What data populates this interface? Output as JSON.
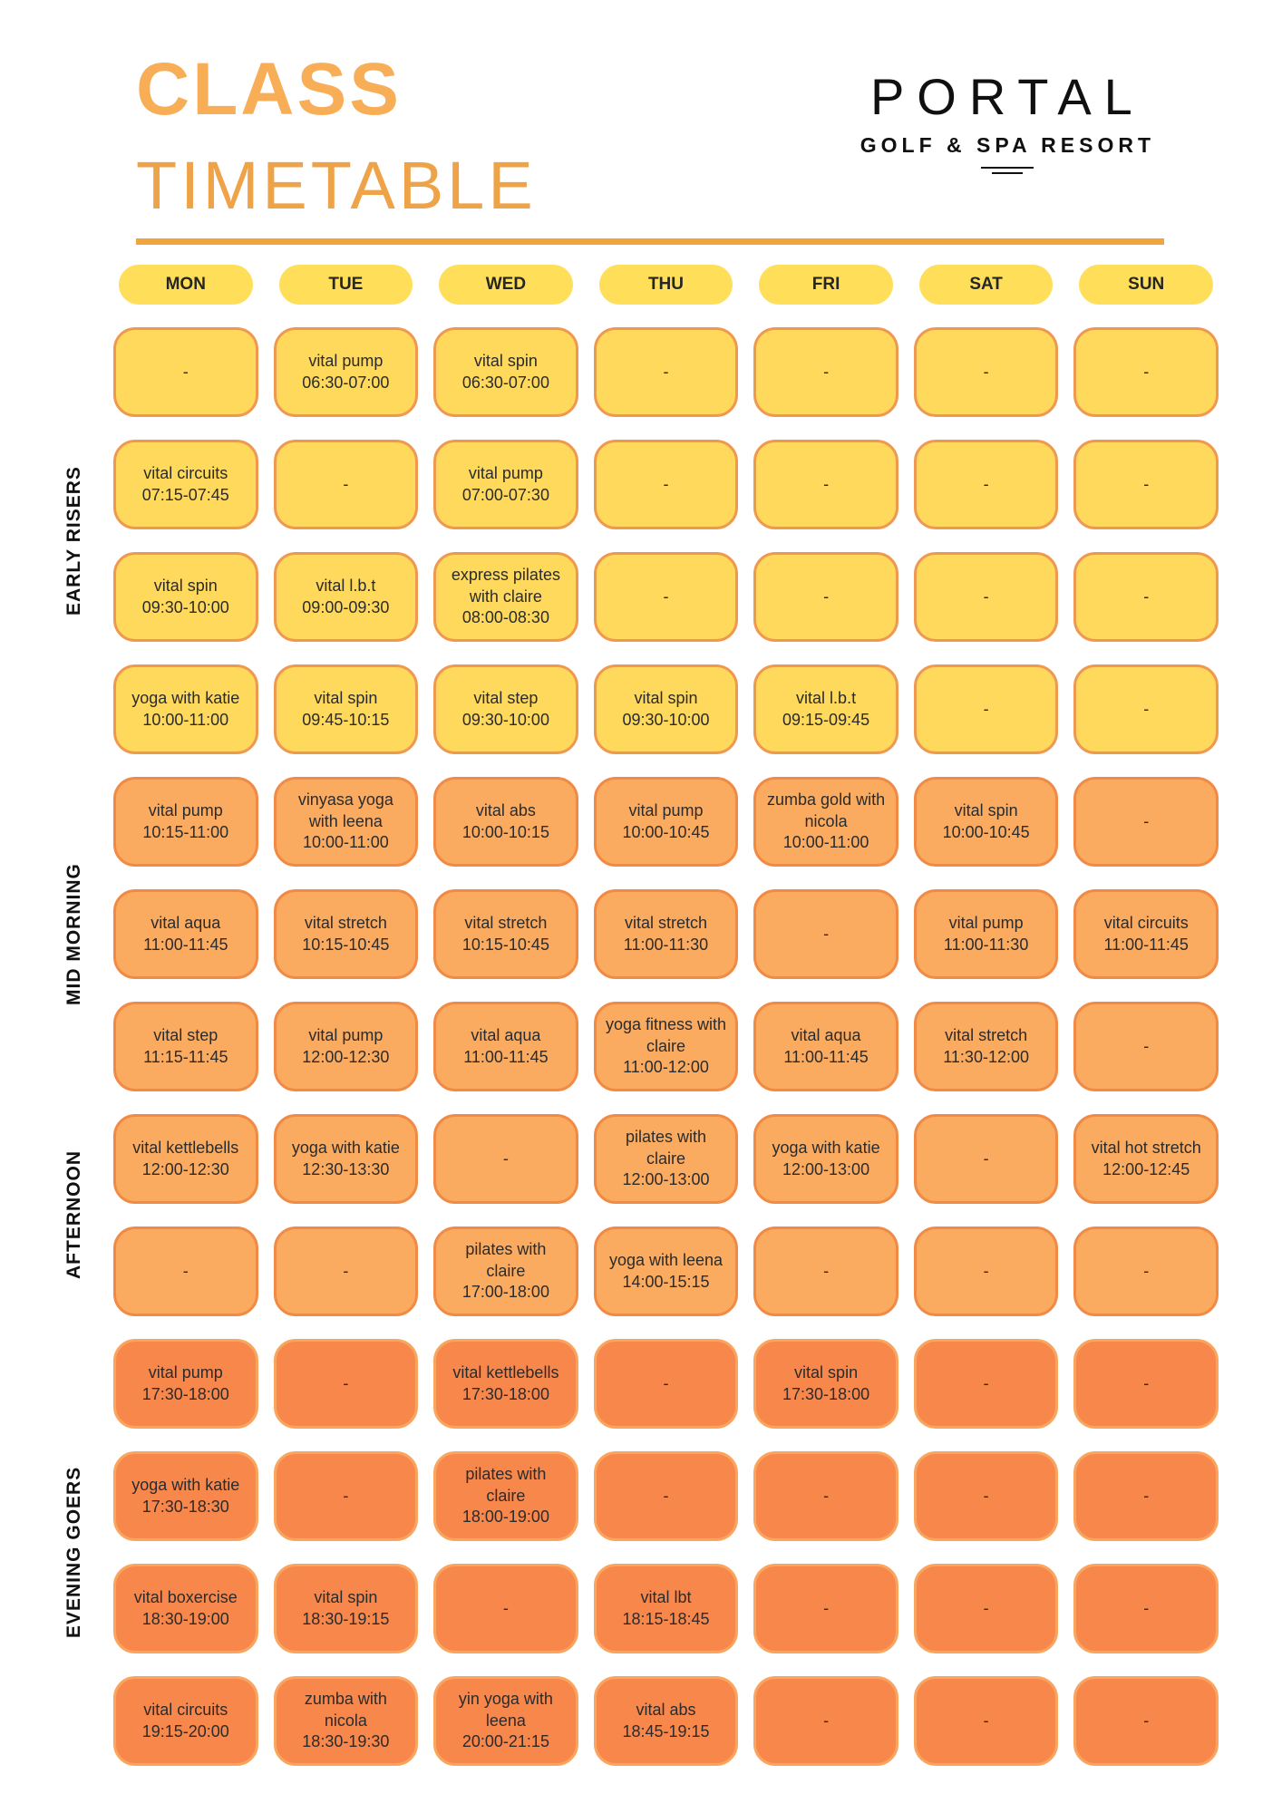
{
  "header": {
    "title_line1": "CLASS",
    "title_line2": "TIMETABLE",
    "logo_name": "PORTAL",
    "logo_subtitle": "GOLF & SPA RESORT"
  },
  "colors": {
    "accent_rule": "#F2A43D",
    "day_pill": "#FFDE59",
    "early_rows": "#FFD95B",
    "mid_rows": "#FBAB60",
    "evening_rows": "#F8874B",
    "title_orange": "#F8AE57"
  },
  "days": [
    "MON",
    "TUE",
    "WED",
    "THU",
    "FRI",
    "SAT",
    "SUN"
  ],
  "sections": [
    {
      "label": "EARLY RISERS",
      "rows": [
        0,
        3
      ]
    },
    {
      "label": "MID MORNING",
      "rows": [
        4,
        6
      ]
    },
    {
      "label": "AFTERNOON",
      "rows": [
        7,
        8
      ]
    },
    {
      "label": "EVENING GOERS",
      "rows": [
        9,
        12
      ]
    }
  ],
  "rows": [
    {
      "tone": "yellow",
      "cells": [
        "-",
        "vital pump\n06:30-07:00",
        "vital spin\n06:30-07:00",
        "-",
        "-",
        "-",
        "-"
      ]
    },
    {
      "tone": "yellow",
      "cells": [
        "vital circuits\n07:15-07:45",
        "-",
        "vital pump\n07:00-07:30",
        "-",
        "-",
        "-",
        "-"
      ]
    },
    {
      "tone": "yellow",
      "cells": [
        "vital spin\n09:30-10:00",
        "vital l.b.t\n09:00-09:30",
        "express pilates with claire\n08:00-08:30",
        "-",
        "-",
        "-",
        "-"
      ]
    },
    {
      "tone": "yellow",
      "cells": [
        "yoga with katie\n10:00-11:00",
        "vital spin\n09:45-10:15",
        "vital step\n09:30-10:00",
        "vital spin\n09:30-10:00",
        "vital l.b.t\n09:15-09:45",
        "-",
        "-"
      ]
    },
    {
      "tone": "orange",
      "cells": [
        "vital pump\n10:15-11:00",
        "vinyasa yoga with leena\n10:00-11:00",
        "vital abs\n10:00-10:15",
        "vital pump\n10:00-10:45",
        "zumba gold with nicola\n10:00-11:00",
        "vital spin\n10:00-10:45",
        "-"
      ]
    },
    {
      "tone": "orange",
      "cells": [
        "vital aqua\n11:00-11:45",
        "vital stretch\n10:15-10:45",
        "vital stretch\n10:15-10:45",
        "vital stretch\n11:00-11:30",
        "-",
        "vital pump\n11:00-11:30",
        "vital circuits\n11:00-11:45"
      ]
    },
    {
      "tone": "orange",
      "cells": [
        "vital step\n11:15-11:45",
        "vital pump\n12:00-12:30",
        "vital aqua\n11:00-11:45",
        "yoga fitness with claire\n11:00-12:00",
        "vital aqua\n11:00-11:45",
        "vital stretch\n11:30-12:00",
        "-"
      ]
    },
    {
      "tone": "orange",
      "cells": [
        "vital kettlebells\n12:00-12:30",
        "yoga with katie\n12:30-13:30",
        "-",
        "pilates with claire\n12:00-13:00",
        "yoga with katie\n12:00-13:00",
        "-",
        "vital hot stretch\n12:00-12:45"
      ]
    },
    {
      "tone": "orange",
      "cells": [
        "-",
        "-",
        "pilates with claire\n17:00-18:00",
        "yoga with leena\n14:00-15:15",
        "-",
        "-",
        "-"
      ]
    },
    {
      "tone": "deep",
      "cells": [
        "vital pump\n17:30-18:00",
        "-",
        "vital kettlebells\n17:30-18:00",
        "-",
        "vital spin\n17:30-18:00",
        "-",
        "-"
      ]
    },
    {
      "tone": "deep",
      "cells": [
        "yoga with katie\n17:30-18:30",
        "-",
        "pilates with claire\n18:00-19:00",
        "-",
        "-",
        "-",
        "-"
      ]
    },
    {
      "tone": "deep",
      "cells": [
        "vital boxercise\n18:30-19:00",
        "vital spin\n18:30-19:15",
        "-",
        "vital lbt\n18:15-18:45",
        "-",
        "-",
        "-"
      ]
    },
    {
      "tone": "deep",
      "cells": [
        "vital circuits\n19:15-20:00",
        "zumba with nicola\n18:30-19:30",
        "yin yoga with leena\n20:00-21:15",
        "vital abs\n18:45-19:15",
        "-",
        "-",
        "-"
      ]
    }
  ]
}
